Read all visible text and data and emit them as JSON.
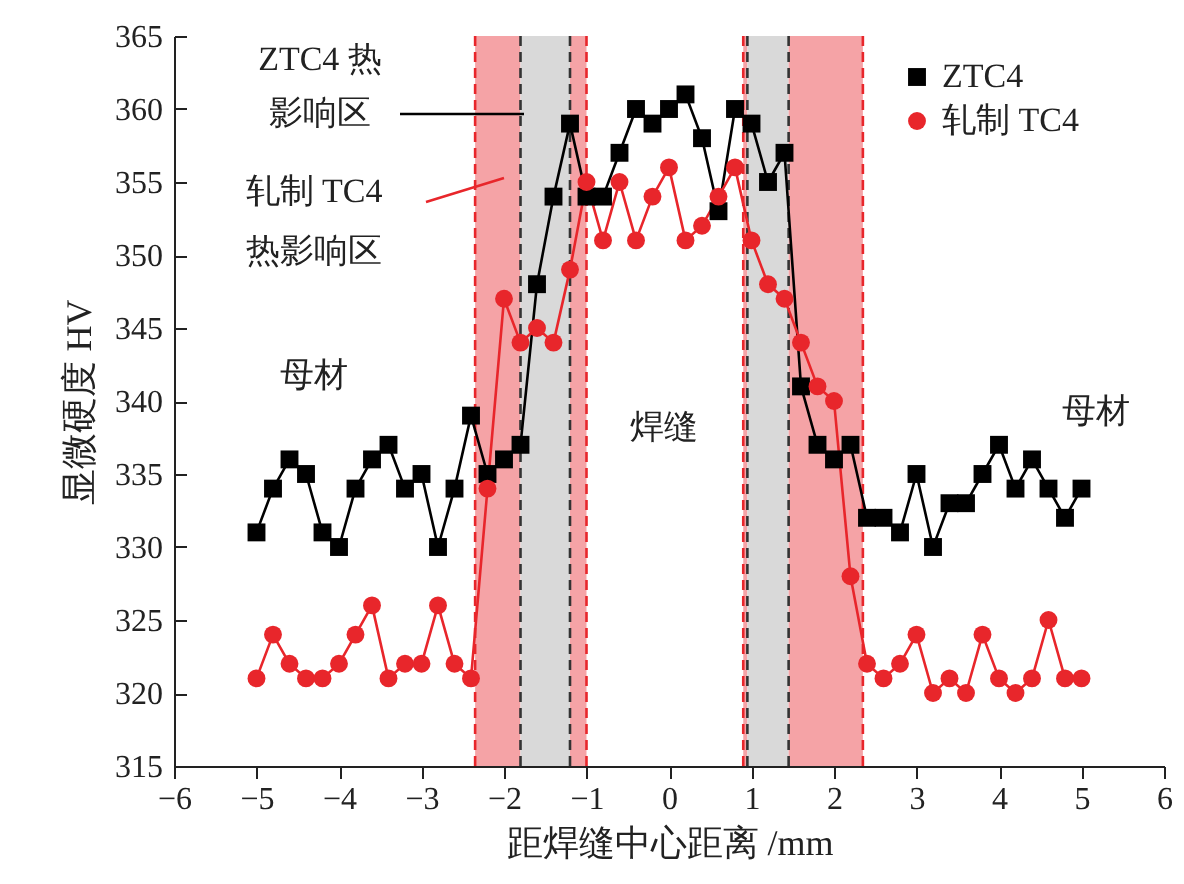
{
  "chart_data": {
    "type": "line",
    "xlabel": "距焊缝中心距离 /mm",
    "ylabel": "显微硬度 HV",
    "x": [
      -5,
      -4.8,
      -4.6,
      -4.4,
      -4.2,
      -4,
      -3.8,
      -3.6,
      -3.4,
      -3.2,
      -3,
      -2.8,
      -2.6,
      -2.4,
      -2.2,
      -2,
      -1.8,
      -1.6,
      -1.4,
      -1.2,
      -1,
      -0.8,
      -0.6,
      -0.4,
      -0.2,
      0,
      0.2,
      0.4,
      0.6,
      0.8,
      1,
      1.2,
      1.4,
      1.6,
      1.8,
      2,
      2.2,
      2.4,
      2.6,
      2.8,
      3,
      3.2,
      3.4,
      3.6,
      3.8,
      4,
      4.2,
      4.4,
      4.6,
      4.8,
      5
    ],
    "series": [
      {
        "name": "ZTC4",
        "color": "#000000",
        "marker": "square",
        "values": [
          331,
          334,
          336,
          335,
          331,
          330,
          334,
          336,
          337,
          334,
          335,
          330,
          334,
          339,
          335,
          336,
          337,
          348,
          354,
          359,
          354,
          354,
          357,
          360,
          359,
          360,
          361,
          358,
          353,
          360,
          359,
          355,
          357,
          341,
          337,
          336,
          337,
          332,
          332,
          331,
          335,
          330,
          333,
          333,
          335,
          337,
          334,
          336,
          334,
          332,
          334
        ]
      },
      {
        "name": "轧制 TC4",
        "color": "#e8262b",
        "marker": "circle",
        "values": [
          321,
          324,
          322,
          321,
          321,
          322,
          324,
          326,
          321,
          322,
          322,
          326,
          322,
          321,
          334,
          347,
          344,
          345,
          344,
          349,
          355,
          351,
          355,
          351,
          354,
          356,
          351,
          352,
          354,
          356,
          351,
          348,
          347,
          344,
          341,
          340,
          328,
          322,
          321,
          322,
          324,
          320,
          321,
          320,
          324,
          321,
          320,
          321,
          325,
          321,
          321
        ]
      }
    ],
    "xlim": [
      -6,
      6
    ],
    "xticks": [
      -6,
      -5,
      -4,
      -3,
      -2,
      -1,
      0,
      1,
      2,
      3,
      4,
      5,
      6
    ],
    "ylim": [
      315,
      365
    ],
    "yticks": [
      315,
      320,
      325,
      330,
      335,
      340,
      345,
      350,
      355,
      360,
      365
    ],
    "legend": "top right",
    "line_style": "solid",
    "bands": [
      {
        "axis": "x",
        "from": -2.35,
        "to": -1.8,
        "color": "#f5a3a6"
      },
      {
        "axis": "x",
        "from": -1.8,
        "to": -1.2,
        "color": "#d9d9d9"
      },
      {
        "axis": "x",
        "from": -1.2,
        "to": -1,
        "color": "#f5a3a6"
      },
      {
        "axis": "x",
        "from": 0.9,
        "to": 0.95,
        "color": "#f5a3a6"
      },
      {
        "axis": "x",
        "from": 0.95,
        "to": 1.45,
        "color": "#d9d9d9"
      },
      {
        "axis": "x",
        "from": 1.45,
        "to": 2.35,
        "color": "#f5a3a6"
      }
    ],
    "ref_lines": [
      {
        "axis": "x",
        "value": -2.35,
        "color": "#e8262b",
        "line_style": "dashed"
      },
      {
        "axis": "x",
        "value": -1.8,
        "color": "#333333",
        "line_style": "dashed"
      },
      {
        "axis": "x",
        "value": -1.2,
        "color": "#333333",
        "line_style": "dashed"
      },
      {
        "axis": "x",
        "value": -1,
        "color": "#e8262b",
        "line_style": "dashed"
      },
      {
        "axis": "x",
        "value": 0.9,
        "color": "#e8262b",
        "line_style": "dashed"
      },
      {
        "axis": "x",
        "value": 0.95,
        "color": "#333333",
        "line_style": "dashed"
      },
      {
        "axis": "x",
        "value": 1.45,
        "color": "#333333",
        "line_style": "dashed"
      },
      {
        "axis": "x",
        "value": 2.35,
        "color": "#e8262b",
        "line_style": "dashed"
      }
    ],
    "annotations": [
      "ZTC4 热",
      "影响区",
      "轧制 TC4",
      "热影响区",
      "母材",
      "焊缝",
      "母材"
    ]
  }
}
